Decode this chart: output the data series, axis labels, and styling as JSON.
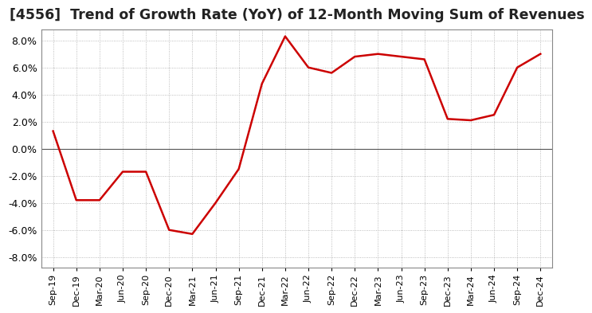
{
  "title": "[4556]  Trend of Growth Rate (YoY) of 12-Month Moving Sum of Revenues",
  "title_fontsize": 12.5,
  "ylim": [
    -0.088,
    0.088
  ],
  "yticks": [
    -0.08,
    -0.06,
    -0.04,
    -0.02,
    0.0,
    0.02,
    0.04,
    0.06,
    0.08
  ],
  "line_color": "#cc0000",
  "bg_color": "#ffffff",
  "plot_bg_color": "#ffffff",
  "grid_color": "#aaaaaa",
  "dates": [
    "Sep-19",
    "Dec-19",
    "Mar-20",
    "Jun-20",
    "Sep-20",
    "Dec-20",
    "Mar-21",
    "Jun-21",
    "Sep-21",
    "Dec-21",
    "Mar-22",
    "Jun-22",
    "Sep-22",
    "Dec-22",
    "Mar-23",
    "Jun-23",
    "Sep-23",
    "Dec-23",
    "Mar-24",
    "Jun-24",
    "Sep-24",
    "Dec-24"
  ],
  "values": [
    0.013,
    -0.038,
    -0.038,
    -0.017,
    -0.017,
    -0.06,
    -0.063,
    -0.04,
    -0.015,
    0.048,
    0.083,
    0.06,
    0.056,
    0.068,
    0.07,
    0.068,
    0.066,
    0.022,
    0.021,
    0.025,
    0.06,
    0.07
  ]
}
